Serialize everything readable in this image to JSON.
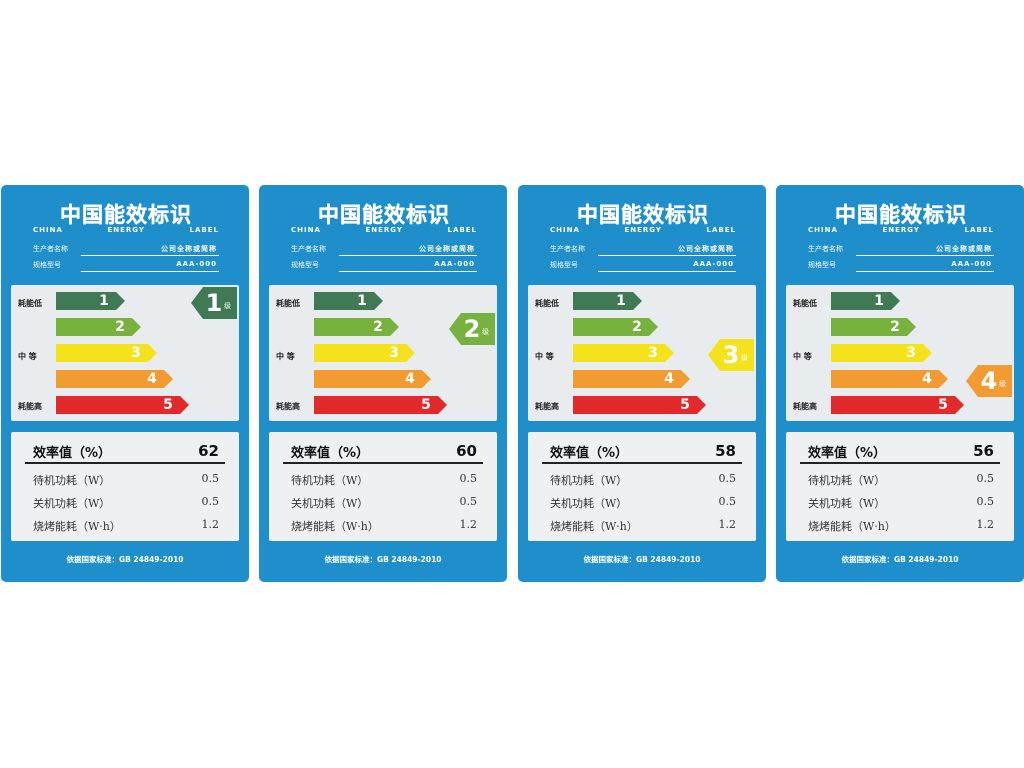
{
  "common": {
    "title": "中国能效标识",
    "subtitle": "CHINA ENERGY LABEL",
    "manufacturer_label": "生产者名称",
    "manufacturer_value": "公司全称或简称",
    "model_label": "规格型号",
    "model_value": "AAA-000",
    "side_low": "耗能低",
    "side_mid": "中  等",
    "side_high": "耗能高",
    "grade_numbers": [
      "1",
      "2",
      "3",
      "4",
      "5"
    ],
    "grade_suffix": "级",
    "efficiency_label": "效率值（%）",
    "standby_label": "待机功耗（W）",
    "standby_value": "0.5",
    "off_label": "关机功耗（W）",
    "off_value": "0.5",
    "bake_label": "烧烤能耗（W·h）",
    "bake_value": "1.2",
    "footer": "依据国家标准：GB 24849-2010"
  },
  "colors": {
    "background_blue": "#1f8fcb",
    "grade_colors": [
      "#3f7a55",
      "#77b23f",
      "#f3e21c",
      "#f39b33",
      "#e2292b"
    ]
  },
  "labels": [
    {
      "grade": "1",
      "efficiency": "62"
    },
    {
      "grade": "2",
      "efficiency": "60"
    },
    {
      "grade": "3",
      "efficiency": "58"
    },
    {
      "grade": "4",
      "efficiency": "56"
    }
  ]
}
